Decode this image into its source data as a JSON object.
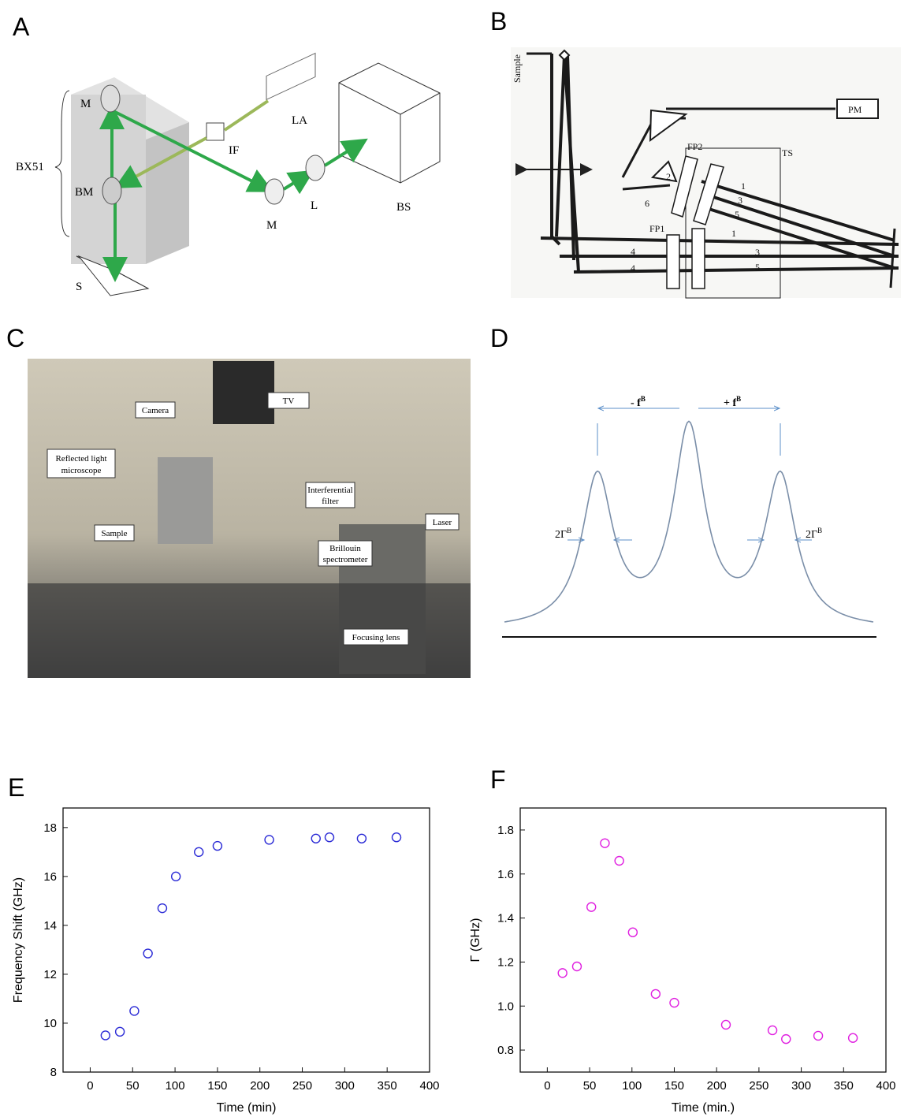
{
  "panel_labels": [
    "A",
    "B",
    "C",
    "D",
    "E",
    "F"
  ],
  "diagram_a": {
    "labels": [
      "M",
      "BX51",
      "BM",
      "IF",
      "LA",
      "M",
      "L",
      "BS",
      "S"
    ]
  },
  "diagram_b": {
    "labels": [
      "Sample",
      "PM",
      "FP2",
      "TS",
      "FP1",
      "1",
      "2",
      "3",
      "5",
      "6",
      "1",
      "4",
      "3",
      "4",
      "5"
    ]
  },
  "photo_c": {
    "labels": [
      "TV",
      "Camera",
      "Reflected light",
      "microscope",
      "Sample",
      "Interferential",
      "filter",
      "Laser",
      "Brillouin",
      "spectrometer",
      "Focusing lens"
    ]
  },
  "diagram_d": {
    "labels": [
      {
        "text": "- f",
        "sup": "B"
      },
      {
        "text": "+ f",
        "sup": "B"
      },
      {
        "text": "2Γ",
        "sup": "B"
      },
      {
        "text": "2Γ",
        "sup": "B"
      }
    ]
  },
  "chart_data": [
    {
      "type": "scatter",
      "x_label": "Time (min)",
      "y_label": "Frequency Shift (GHz)",
      "color": "#2b2bd6",
      "marker": "open-circle",
      "x": [
        18,
        35,
        52,
        68,
        85,
        101,
        128,
        150,
        211,
        266,
        282,
        320,
        361
      ],
      "values": [
        9.5,
        9.65,
        10.5,
        12.85,
        14.7,
        16.0,
        17.0,
        17.25,
        17.5,
        17.55,
        17.6,
        17.55,
        17.6
      ],
      "xlim": [
        -32,
        400
      ],
      "ylim": [
        8,
        18.8
      ],
      "xticks": [
        0,
        50,
        100,
        150,
        200,
        250,
        300,
        350,
        400
      ],
      "yticks": [
        8,
        10,
        12,
        14,
        16,
        18
      ]
    },
    {
      "type": "scatter",
      "x_label": "Time (min.)",
      "y_label": "Γ (GHz)",
      "color": "#e020e0",
      "marker": "open-circle",
      "x": [
        18,
        35,
        52,
        68,
        85,
        101,
        128,
        150,
        211,
        266,
        282,
        320,
        361
      ],
      "values": [
        1.15,
        1.18,
        1.45,
        1.74,
        1.66,
        1.335,
        1.055,
        1.015,
        0.915,
        0.89,
        0.85,
        0.865,
        0.855
      ],
      "xlim": [
        -32,
        400
      ],
      "ylim": [
        0.7,
        1.9
      ],
      "xticks": [
        0,
        50,
        100,
        150,
        200,
        250,
        300,
        350,
        400
      ],
      "yticks": [
        0.8,
        {
          "value": 1,
          "label": "1.0"
        },
        1.2,
        1.4,
        1.6,
        1.8
      ]
    }
  ]
}
